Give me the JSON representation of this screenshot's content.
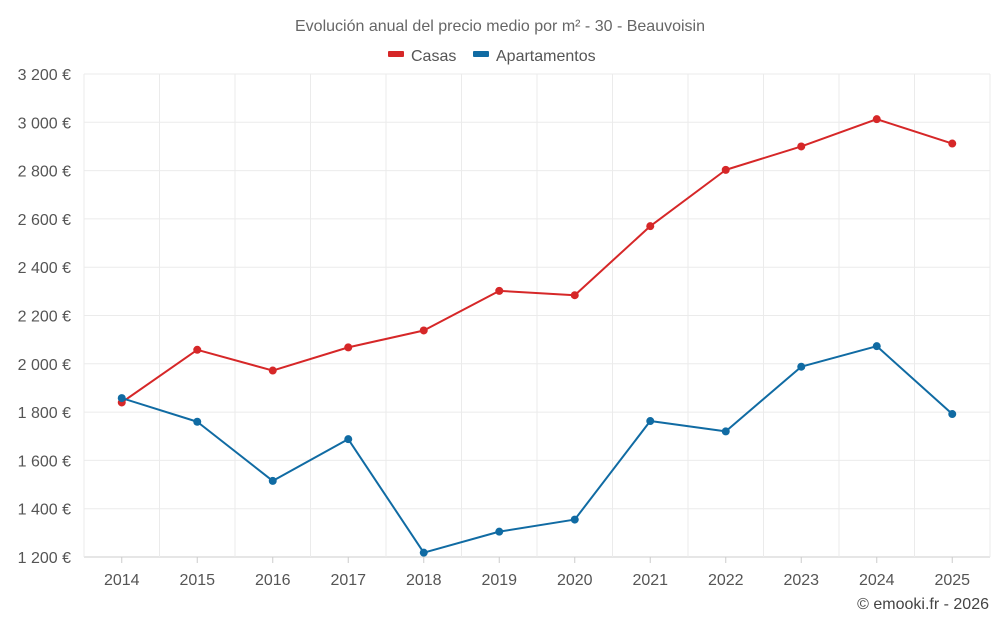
{
  "chart_data": {
    "type": "line",
    "title": "Evolución anual del precio medio por m² - 30 - Beauvoisin",
    "categories": [
      "2014",
      "2015",
      "2016",
      "2017",
      "2018",
      "2019",
      "2020",
      "2021",
      "2022",
      "2023",
      "2024",
      "2025"
    ],
    "series": [
      {
        "name": "Casas",
        "color": "#d62728",
        "values": [
          1840,
          2058,
          1972,
          2068,
          2138,
          2302,
          2284,
          2570,
          2803,
          2900,
          3013,
          2912
        ]
      },
      {
        "name": "Apartamentos",
        "color": "#106ba3",
        "values": [
          1858,
          1760,
          1515,
          1688,
          1218,
          1305,
          1355,
          1763,
          1720,
          1988,
          2073,
          1792
        ]
      }
    ],
    "ylim": [
      1200,
      3200
    ],
    "yticks": [
      1200,
      1400,
      1600,
      1800,
      2000,
      2200,
      2400,
      2600,
      2800,
      3000,
      3200
    ],
    "ytick_labels": [
      "1 200 €",
      "1 400 €",
      "1 600 €",
      "1 800 €",
      "2 000 €",
      "2 200 €",
      "2 400 €",
      "2 600 €",
      "2 800 €",
      "3 000 €",
      "3 200 €"
    ],
    "xlabel": "",
    "ylabel": "",
    "grid": true,
    "legend_position": "top-center"
  },
  "credit": "© emooki.fr - 2026"
}
